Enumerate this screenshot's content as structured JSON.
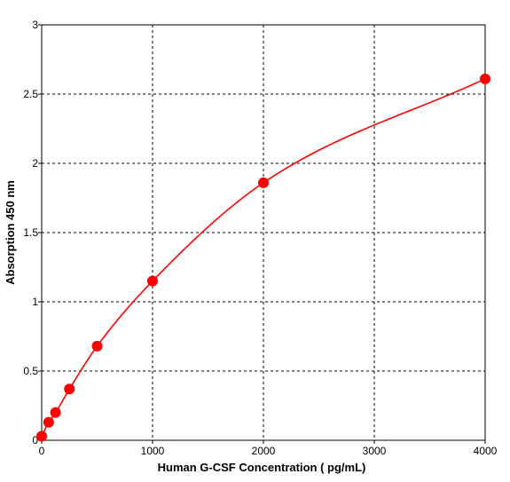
{
  "chart_data": {
    "type": "scatter",
    "title": "",
    "xlabel": "Human G-CSF Concentration ( pg/mL)",
    "ylabel": "Absorption 450 nm",
    "xlim": [
      0,
      4000
    ],
    "ylim": [
      0,
      3
    ],
    "x_ticks": [
      "0",
      "1000",
      "2000",
      "3000",
      "4000"
    ],
    "y_ticks": [
      "0",
      "0.5",
      "1",
      "1.5",
      "2",
      "2.5",
      "3"
    ],
    "grid": "dashed",
    "series": [
      {
        "points": [
          {
            "x": 0,
            "y": 0.03
          },
          {
            "x": 62.5,
            "y": 0.13
          },
          {
            "x": 125,
            "y": 0.2
          },
          {
            "x": 250,
            "y": 0.37
          },
          {
            "x": 500,
            "y": 0.68
          },
          {
            "x": 1000,
            "y": 1.15
          },
          {
            "x": 2000,
            "y": 1.86
          },
          {
            "x": 4000,
            "y": 2.61
          }
        ],
        "fit": "smooth curve"
      }
    ],
    "color": "#ff0000"
  }
}
